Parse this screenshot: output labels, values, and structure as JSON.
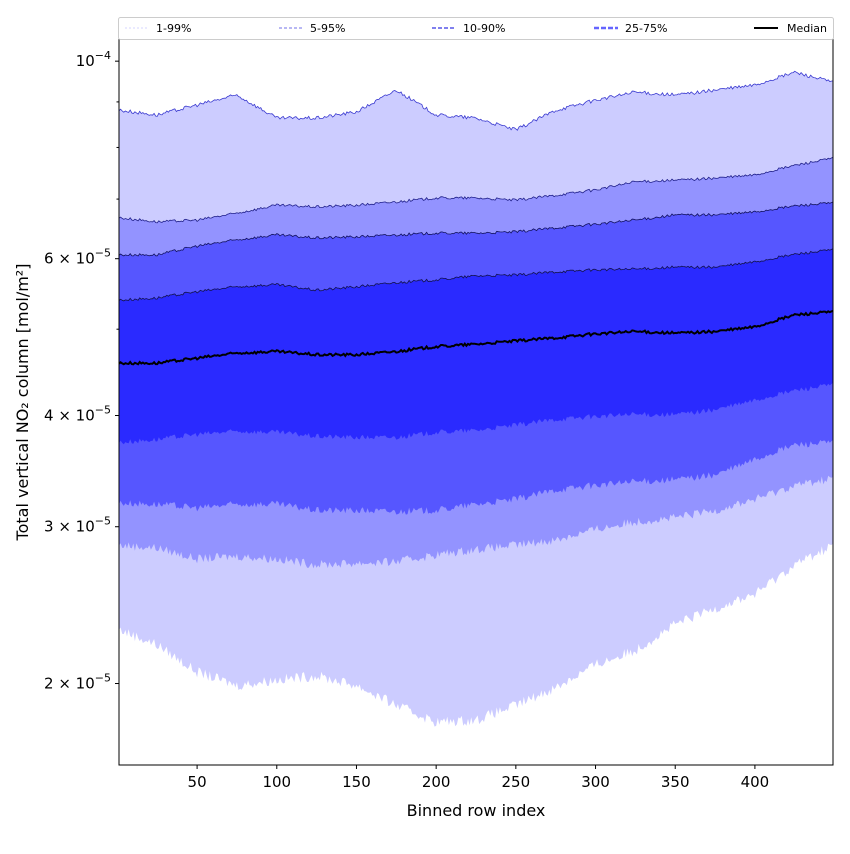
{
  "chart_data": {
    "type": "area",
    "title": "",
    "xlabel": "Binned row index",
    "ylabel": "Total vertical NO₂ column [mol/m²]",
    "yscale": "log",
    "xlim": [
      1,
      449
    ],
    "ylim": [
      1.62e-05,
      0.0001059
    ],
    "grid": false,
    "legend_placement": "top (above plot, single row)",
    "x_ticks": [
      50,
      100,
      150,
      200,
      250,
      300,
      350,
      400
    ],
    "y_ticks": [
      {
        "value": 2e-05,
        "mantissa": "2 × 10",
        "exponent": "−5"
      },
      {
        "value": 3e-05,
        "mantissa": "3 × 10",
        "exponent": "−5"
      },
      {
        "value": 4e-05,
        "mantissa": "4 × 10",
        "exponent": "−5"
      },
      {
        "value": 6e-05,
        "mantissa": "6 × 10",
        "exponent": "−5"
      },
      {
        "value": 0.0001,
        "mantissa": "10",
        "exponent": "−4"
      }
    ],
    "y_minor_ticks": [
      5e-05,
      7e-05,
      8e-05,
      9e-05
    ],
    "x": [
      1,
      25,
      50,
      75,
      100,
      125,
      150,
      175,
      200,
      225,
      250,
      275,
      300,
      325,
      350,
      375,
      400,
      425,
      449
    ],
    "percentiles": {
      "p1": [
        2.3e-05,
        2.21e-05,
        2.06e-05,
        1.99e-05,
        2.02e-05,
        2.04e-05,
        1.99e-05,
        1.89e-05,
        1.81e-05,
        1.82e-05,
        1.89e-05,
        1.98e-05,
        2.1e-05,
        2.18e-05,
        2.33e-05,
        2.43e-05,
        2.52e-05,
        2.72e-05,
        2.86e-05
      ],
      "p5": [
        2.86e-05,
        2.84e-05,
        2.76e-05,
        2.78e-05,
        2.76e-05,
        2.72e-05,
        2.73e-05,
        2.74e-05,
        2.79e-05,
        2.83e-05,
        2.86e-05,
        2.9e-05,
        2.98e-05,
        3.04e-05,
        3.07e-05,
        3.13e-05,
        3.22e-05,
        3.34e-05,
        3.4e-05
      ],
      "p10": [
        3.19e-05,
        3.18e-05,
        3.15e-05,
        3.18e-05,
        3.18e-05,
        3.13e-05,
        3.13e-05,
        3.12e-05,
        3.13e-05,
        3.18e-05,
        3.22e-05,
        3.3e-05,
        3.34e-05,
        3.37e-05,
        3.39e-05,
        3.43e-05,
        3.57e-05,
        3.71e-05,
        3.73e-05
      ],
      "p25": [
        3.73e-05,
        3.76e-05,
        3.81e-05,
        3.84e-05,
        3.83e-05,
        3.79e-05,
        3.78e-05,
        3.78e-05,
        3.83e-05,
        3.85e-05,
        3.9e-05,
        3.96e-05,
        3.99e-05,
        4.01e-05,
        4.01e-05,
        4.06e-05,
        4.16e-05,
        4.27e-05,
        4.33e-05
      ],
      "p50": [
        4.58e-05,
        4.58e-05,
        4.64e-05,
        4.7e-05,
        4.72e-05,
        4.68e-05,
        4.68e-05,
        4.72e-05,
        4.78e-05,
        4.81e-05,
        4.85e-05,
        4.89e-05,
        4.94e-05,
        4.97e-05,
        4.95e-05,
        4.97e-05,
        5.03e-05,
        5.19e-05,
        5.23e-05
      ],
      "p75": [
        5.39e-05,
        5.42e-05,
        5.51e-05,
        5.58e-05,
        5.61e-05,
        5.53e-05,
        5.58e-05,
        5.64e-05,
        5.68e-05,
        5.74e-05,
        5.75e-05,
        5.8e-05,
        5.83e-05,
        5.84e-05,
        5.87e-05,
        5.87e-05,
        5.95e-05,
        6.07e-05,
        6.14e-05
      ],
      "p90": [
        6.06e-05,
        6.06e-05,
        6.2e-05,
        6.3e-05,
        6.38e-05,
        6.33e-05,
        6.35e-05,
        6.38e-05,
        6.41e-05,
        6.41e-05,
        6.43e-05,
        6.5e-05,
        6.56e-05,
        6.63e-05,
        6.72e-05,
        6.72e-05,
        6.77e-05,
        6.88e-05,
        6.93e-05
      ],
      "p95": [
        6.67e-05,
        6.6e-05,
        6.63e-05,
        6.75e-05,
        6.89e-05,
        6.86e-05,
        6.89e-05,
        6.95e-05,
        7.02e-05,
        7.02e-05,
        6.98e-05,
        7.07e-05,
        7.17e-05,
        7.32e-05,
        7.35e-05,
        7.39e-05,
        7.45e-05,
        7.64e-05,
        7.78e-05
      ],
      "p99": [
        8.81e-05,
        8.7e-05,
        8.93e-05,
        9.16e-05,
        8.63e-05,
        8.63e-05,
        8.77e-05,
        9.28e-05,
        8.7e-05,
        8.63e-05,
        8.37e-05,
        8.81e-05,
        9.04e-05,
        9.23e-05,
        9.16e-05,
        9.28e-05,
        9.4e-05,
        9.72e-05,
        9.47e-05
      ]
    },
    "series": [
      {
        "name": "1-99%",
        "lower": "p1",
        "upper": "p99",
        "fill": "#ccccff",
        "legend_color": "#d4d4ff",
        "edge": "#3a3ad0",
        "dash": "2,2"
      },
      {
        "name": "5-95%",
        "lower": "p5",
        "upper": "p95",
        "fill": "#9393ff",
        "legend_color": "#a0a0f0",
        "edge": "#20208a",
        "dash": "3,2"
      },
      {
        "name": "10-90%",
        "lower": "p10",
        "upper": "p90",
        "fill": "#5656ff",
        "legend_color": "#8080ee",
        "edge": "#121260",
        "dash": "4,2"
      },
      {
        "name": "25-75%",
        "lower": "p25",
        "upper": "p75",
        "fill": "#2a2aff",
        "legend_color": "#6565ff",
        "edge": "#12124e",
        "dash": "5,2"
      },
      {
        "name": "Median",
        "line": "p50",
        "color": "#000000"
      }
    ]
  }
}
